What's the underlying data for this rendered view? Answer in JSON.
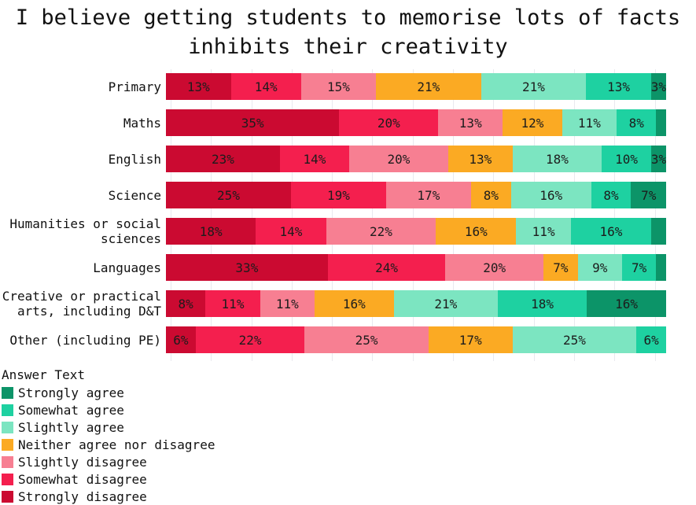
{
  "title": {
    "line1": "I believe getting students to memorise lots of facts",
    "line2": "inhibits their creativity"
  },
  "legend": {
    "title": "Answer Text",
    "items": [
      {
        "label": "Strongly agree",
        "color": "#0c9468"
      },
      {
        "label": "Somewhat agree",
        "color": "#1ed1a1"
      },
      {
        "label": "Slightly agree",
        "color": "#7ce5c1"
      },
      {
        "label": "Neither agree nor disagree",
        "color": "#fbaa23"
      },
      {
        "label": "Slightly disagree",
        "color": "#f77f92"
      },
      {
        "label": "Somewhat disagree",
        "color": "#f41f4e"
      },
      {
        "label": "Strongly disagree",
        "color": "#cb0a31"
      }
    ]
  },
  "chart_data": {
    "type": "bar",
    "orientation": "horizontal",
    "stacked": true,
    "title": "I believe getting students to memorise lots of facts inhibits their creativity",
    "xlabel": "",
    "ylabel": "",
    "values_unit": "percent",
    "grid": "vertical-light",
    "legend_position": "bottom-left",
    "categories": [
      "Primary",
      "Maths",
      "English",
      "Science",
      "Humanities or social sciences",
      "Languages",
      "Creative or practical arts, including D&T",
      "Other (including PE)"
    ],
    "series": [
      {
        "name": "Strongly disagree",
        "color": "#cb0a31",
        "values": [
          13,
          35,
          23,
          25,
          18,
          33,
          8,
          6
        ],
        "labels": [
          "13%",
          "35%",
          "23%",
          "25%",
          "18%",
          "33%",
          "8%",
          "6%"
        ]
      },
      {
        "name": "Somewhat disagree",
        "color": "#f41f4e",
        "values": [
          14,
          20,
          14,
          19,
          14,
          24,
          11,
          22
        ],
        "labels": [
          "14%",
          "20%",
          "14%",
          "19%",
          "14%",
          "24%",
          "11%",
          "22%"
        ]
      },
      {
        "name": "Slightly disagree",
        "color": "#f77f92",
        "values": [
          15,
          13,
          20,
          17,
          22,
          20,
          11,
          25
        ],
        "labels": [
          "15%",
          "13%",
          "20%",
          "17%",
          "22%",
          "20%",
          "11%",
          "25%"
        ]
      },
      {
        "name": "Neither agree nor disagree",
        "color": "#fbaa23",
        "values": [
          21,
          12,
          13,
          8,
          16,
          7,
          16,
          17
        ],
        "labels": [
          "21%",
          "12%",
          "13%",
          "8%",
          "16%",
          "7%",
          "16%",
          "17%"
        ]
      },
      {
        "name": "Slightly agree",
        "color": "#7ce5c1",
        "values": [
          21,
          11,
          18,
          16,
          11,
          9,
          21,
          25
        ],
        "labels": [
          "21%",
          "11%",
          "18%",
          "16%",
          "11%",
          "9%",
          "21%",
          "25%"
        ]
      },
      {
        "name": "Somewhat agree",
        "color": "#1ed1a1",
        "values": [
          13,
          8,
          10,
          8,
          16,
          7,
          18,
          6
        ],
        "labels": [
          "13%",
          "8%",
          "10%",
          "8%",
          "16%",
          "7%",
          "18%",
          "6%"
        ]
      },
      {
        "name": "Strongly agree",
        "color": "#0c9468",
        "values": [
          3,
          2,
          3,
          7,
          3,
          2,
          16,
          0
        ],
        "labels": [
          "3%",
          "",
          "3%",
          "7%",
          "",
          "",
          "16%",
          ""
        ]
      }
    ]
  }
}
